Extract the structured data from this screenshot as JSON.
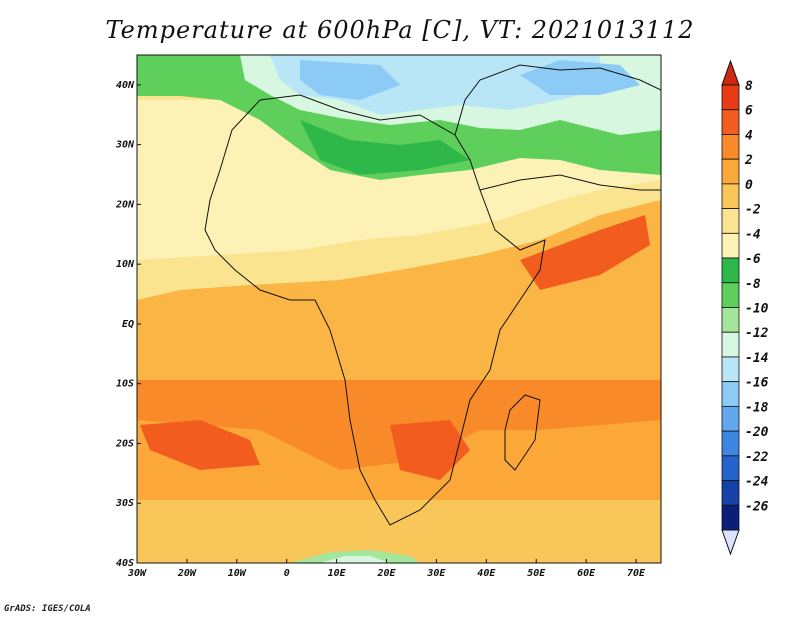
{
  "title": "Temperature at 600hPa [C], VT: 2021013112",
  "credit": "GrADS: IGES/COLA",
  "map": {
    "lon_labels": [
      "30W",
      "20W",
      "10W",
      "0",
      "10E",
      "20E",
      "30E",
      "40E",
      "50E",
      "60E",
      "70E"
    ],
    "lat_labels": [
      "40N",
      "30N",
      "20N",
      "10N",
      "EQ",
      "10S",
      "20S",
      "30S",
      "40S"
    ],
    "lon_range": [
      -30,
      75
    ],
    "lat_range": [
      -40,
      45
    ],
    "colorbar": {
      "levels": [
        "8",
        "6",
        "4",
        "2",
        "0",
        "-2",
        "-4",
        "-6",
        "-8",
        "-10",
        "-12",
        "-14",
        "-16",
        "-18",
        "-20",
        "-22",
        "-24",
        "-26"
      ],
      "colors": [
        "#e83a15",
        "#f25c1e",
        "#f98a2a",
        "#fba838",
        "#f9c65a",
        "#fbe48f",
        "#fdf2b5",
        "#2fb84a",
        "#5fcf5c",
        "#a3e69c",
        "#d8f7e0",
        "#b8e6f7",
        "#8ccbf5",
        "#63a8ef",
        "#3f86e3",
        "#2463cc",
        "#1442a8",
        "#0a1f7a"
      ],
      "top_color": "#cc2a10",
      "bottom_color": "#dde3ff"
    }
  }
}
